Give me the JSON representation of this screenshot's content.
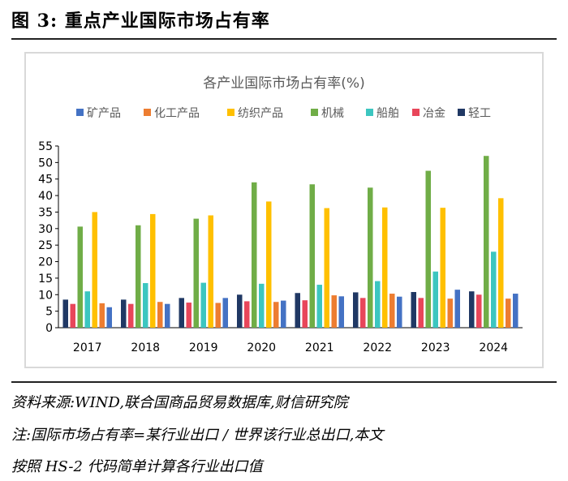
{
  "figure_title": "图 3:  重点产业国际市场占有率",
  "source_note": "资料来源:WIND,联合国商品贸易数据库,财信研究院",
  "note_line1": "注:国际市场占有率=某行业出口 / 世界该行业总出口,本文",
  "note_line2": "按照 HS-2 代码简单计算各行业出口值",
  "chart_data": {
    "type": "bar",
    "title": "各产业国际市场占有率(%)",
    "xlabel": "",
    "ylabel": "",
    "ylim": [
      0,
      55
    ],
    "yticks": [
      0,
      5,
      10,
      15,
      20,
      25,
      30,
      35,
      40,
      45,
      50,
      55
    ],
    "grid": false,
    "legend_position": "top",
    "categories": [
      "2017",
      "2018",
      "2019",
      "2020",
      "2021",
      "2022",
      "2023",
      "2024"
    ],
    "series": [
      {
        "name": "轻工",
        "color": "#203864",
        "values": [
          8.5,
          8.5,
          9.0,
          10.0,
          10.5,
          10.7,
          10.8,
          11.0
        ]
      },
      {
        "name": "冶金",
        "color": "#e8465a",
        "values": [
          7.2,
          7.2,
          7.6,
          8.0,
          8.3,
          9.0,
          9.0,
          10.0
        ]
      },
      {
        "name": "机械",
        "color": "#70ad47",
        "values": [
          30.6,
          31.0,
          33.0,
          44.0,
          43.4,
          42.4,
          47.5,
          52.0
        ]
      },
      {
        "name": "船舶",
        "color": "#3cc6c0",
        "values": [
          11.0,
          13.5,
          13.6,
          13.3,
          13.0,
          14.1,
          17.0,
          23.0
        ]
      },
      {
        "name": "纺织产品",
        "color": "#ffc000",
        "values": [
          35.0,
          34.4,
          34.0,
          38.2,
          36.2,
          36.4,
          36.3,
          39.2
        ]
      },
      {
        "name": "化工产品",
        "color": "#ed7d31",
        "values": [
          7.4,
          7.8,
          7.5,
          7.8,
          9.8,
          10.3,
          8.8,
          8.8
        ]
      },
      {
        "name": "矿产品",
        "color": "#4472c4",
        "values": [
          6.2,
          7.2,
          9.0,
          8.2,
          9.5,
          9.4,
          11.5,
          10.3
        ]
      }
    ],
    "legend_order": [
      "矿产品",
      "化工产品",
      "纺织产品",
      "机械",
      "船舶",
      "冶金",
      "轻工"
    ]
  }
}
